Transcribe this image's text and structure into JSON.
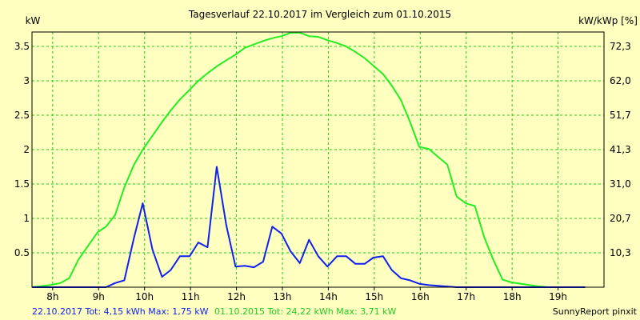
{
  "chart_data": {
    "type": "line",
    "title": "Tagesverlauf 22.10.2017 im Vergleich zum 01.10.2015",
    "ylabel_left": "kW",
    "ylabel_right": "kW/kWp [%]",
    "xlim": [
      7.55,
      20.0
    ],
    "ylim": [
      0,
      3.71
    ],
    "x_ticks": [
      {
        "value": 8,
        "label": "8h"
      },
      {
        "value": 9,
        "label": "9h"
      },
      {
        "value": 10,
        "label": "10h"
      },
      {
        "value": 11,
        "label": "11h"
      },
      {
        "value": 12,
        "label": "12h"
      },
      {
        "value": 13,
        "label": "13h"
      },
      {
        "value": 14,
        "label": "14h"
      },
      {
        "value": 15,
        "label": "15h"
      },
      {
        "value": 16,
        "label": "16h"
      },
      {
        "value": 17,
        "label": "17h"
      },
      {
        "value": 18,
        "label": "18h"
      },
      {
        "value": 19,
        "label": "19h"
      }
    ],
    "y_ticks_left": [
      {
        "value": 0.5,
        "label": "0.5"
      },
      {
        "value": 1,
        "label": "1"
      },
      {
        "value": 1.5,
        "label": "1.5"
      },
      {
        "value": 2,
        "label": "2"
      },
      {
        "value": 2.5,
        "label": "2.5"
      },
      {
        "value": 3,
        "label": "3"
      },
      {
        "value": 3.5,
        "label": "3.5"
      }
    ],
    "y_ticks_right": [
      {
        "value": 0.5,
        "label": "10,3"
      },
      {
        "value": 1,
        "label": "20,7"
      },
      {
        "value": 1.5,
        "label": "31,0"
      },
      {
        "value": 2,
        "label": "41,3"
      },
      {
        "value": 2.5,
        "label": "51,7"
      },
      {
        "value": 3,
        "label": "62,0"
      },
      {
        "value": 3.5,
        "label": "72,3"
      }
    ],
    "grid": true,
    "series": [
      {
        "color": "#22EE22",
        "x": [
          7.55,
          7.94,
          8.17,
          8.36,
          8.56,
          8.79,
          8.98,
          9.16,
          9.36,
          9.56,
          9.77,
          9.96,
          10.17,
          10.38,
          10.57,
          10.77,
          10.98,
          11.17,
          11.37,
          11.57,
          11.78,
          11.98,
          12.18,
          12.38,
          12.58,
          12.78,
          12.98,
          13.18,
          13.38,
          13.58,
          13.78,
          13.98,
          14.19,
          14.39,
          14.59,
          14.79,
          14.98,
          15.19,
          15.38,
          15.58,
          15.78,
          15.98,
          16.19,
          16.38,
          16.59,
          16.79,
          16.99,
          17.19,
          17.39,
          17.59,
          17.79,
          17.99,
          18.19,
          18.39,
          18.59,
          18.79,
          18.99,
          19.19,
          19.39,
          19.59
        ],
        "y": [
          0.0,
          0.03,
          0.06,
          0.13,
          0.4,
          0.62,
          0.8,
          0.88,
          1.05,
          1.45,
          1.78,
          2.0,
          2.2,
          2.4,
          2.57,
          2.73,
          2.87,
          3.0,
          3.11,
          3.21,
          3.3,
          3.38,
          3.48,
          3.53,
          3.58,
          3.62,
          3.65,
          3.7,
          3.7,
          3.65,
          3.64,
          3.59,
          3.55,
          3.5,
          3.42,
          3.33,
          3.22,
          3.1,
          2.93,
          2.72,
          2.4,
          2.04,
          2.01,
          1.9,
          1.78,
          1.32,
          1.22,
          1.18,
          0.73,
          0.4,
          0.11,
          0.07,
          0.05,
          0.03,
          0.01,
          0.0,
          0.0,
          0.0,
          0.0,
          0.0
        ]
      },
      {
        "color": "#1020EE",
        "x": [
          7.55,
          9.16,
          9.36,
          9.56,
          9.77,
          9.96,
          10.17,
          10.38,
          10.57,
          10.77,
          10.98,
          11.17,
          11.37,
          11.57,
          11.78,
          11.98,
          12.18,
          12.38,
          12.58,
          12.78,
          12.98,
          13.18,
          13.38,
          13.58,
          13.78,
          13.98,
          14.19,
          14.39,
          14.59,
          14.79,
          14.98,
          15.19,
          15.38,
          15.58,
          15.78,
          15.98,
          16.19,
          16.38,
          16.59,
          16.79,
          16.99,
          17.19,
          17.39,
          17.59,
          17.79,
          17.99,
          18.19,
          19.59
        ],
        "y": [
          0.0,
          0.0,
          0.06,
          0.1,
          0.72,
          1.22,
          0.55,
          0.15,
          0.25,
          0.45,
          0.45,
          0.65,
          0.58,
          1.75,
          0.9,
          0.3,
          0.31,
          0.29,
          0.37,
          0.88,
          0.78,
          0.52,
          0.35,
          0.69,
          0.45,
          0.3,
          0.45,
          0.45,
          0.34,
          0.34,
          0.43,
          0.45,
          0.25,
          0.13,
          0.1,
          0.05,
          0.03,
          0.02,
          0.01,
          0.0,
          0.0,
          0.0,
          0.0,
          0.0,
          0.0,
          0.0,
          0.0,
          0.0
        ]
      }
    ]
  },
  "footer": {
    "blue_text": "22.10.2017 Tot: 4,15 kWh Max: 1,75 kW",
    "green_text": "01.10.2015 Tot: 24,22 kWh Max: 3,71 kW",
    "brand_text": "SunnyReport pinxit",
    "blue_color": "#1020EE",
    "green_color": "#22CC22"
  }
}
